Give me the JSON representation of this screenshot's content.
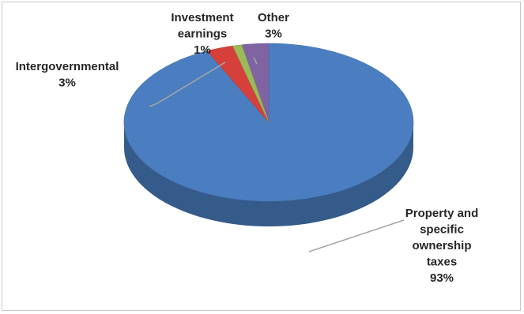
{
  "chart_data": {
    "type": "pie",
    "title": "",
    "style": "3d",
    "legend": "none",
    "slices": [
      {
        "label_lines": [
          "Property and",
          "specific",
          "ownership",
          "taxes"
        ],
        "pct_text": "93%",
        "value": 93,
        "color": "#4a7ec0"
      },
      {
        "label_lines": [
          "Intergovernmental"
        ],
        "pct_text": "3%",
        "value": 3,
        "color": "#d5403a"
      },
      {
        "label_lines": [
          "Investment",
          "earnings"
        ],
        "pct_text": "1%",
        "value": 1,
        "color": "#9bbb59"
      },
      {
        "label_lines": [
          "Other"
        ],
        "pct_text": "3%",
        "value": 3,
        "color": "#8064a2"
      }
    ]
  }
}
